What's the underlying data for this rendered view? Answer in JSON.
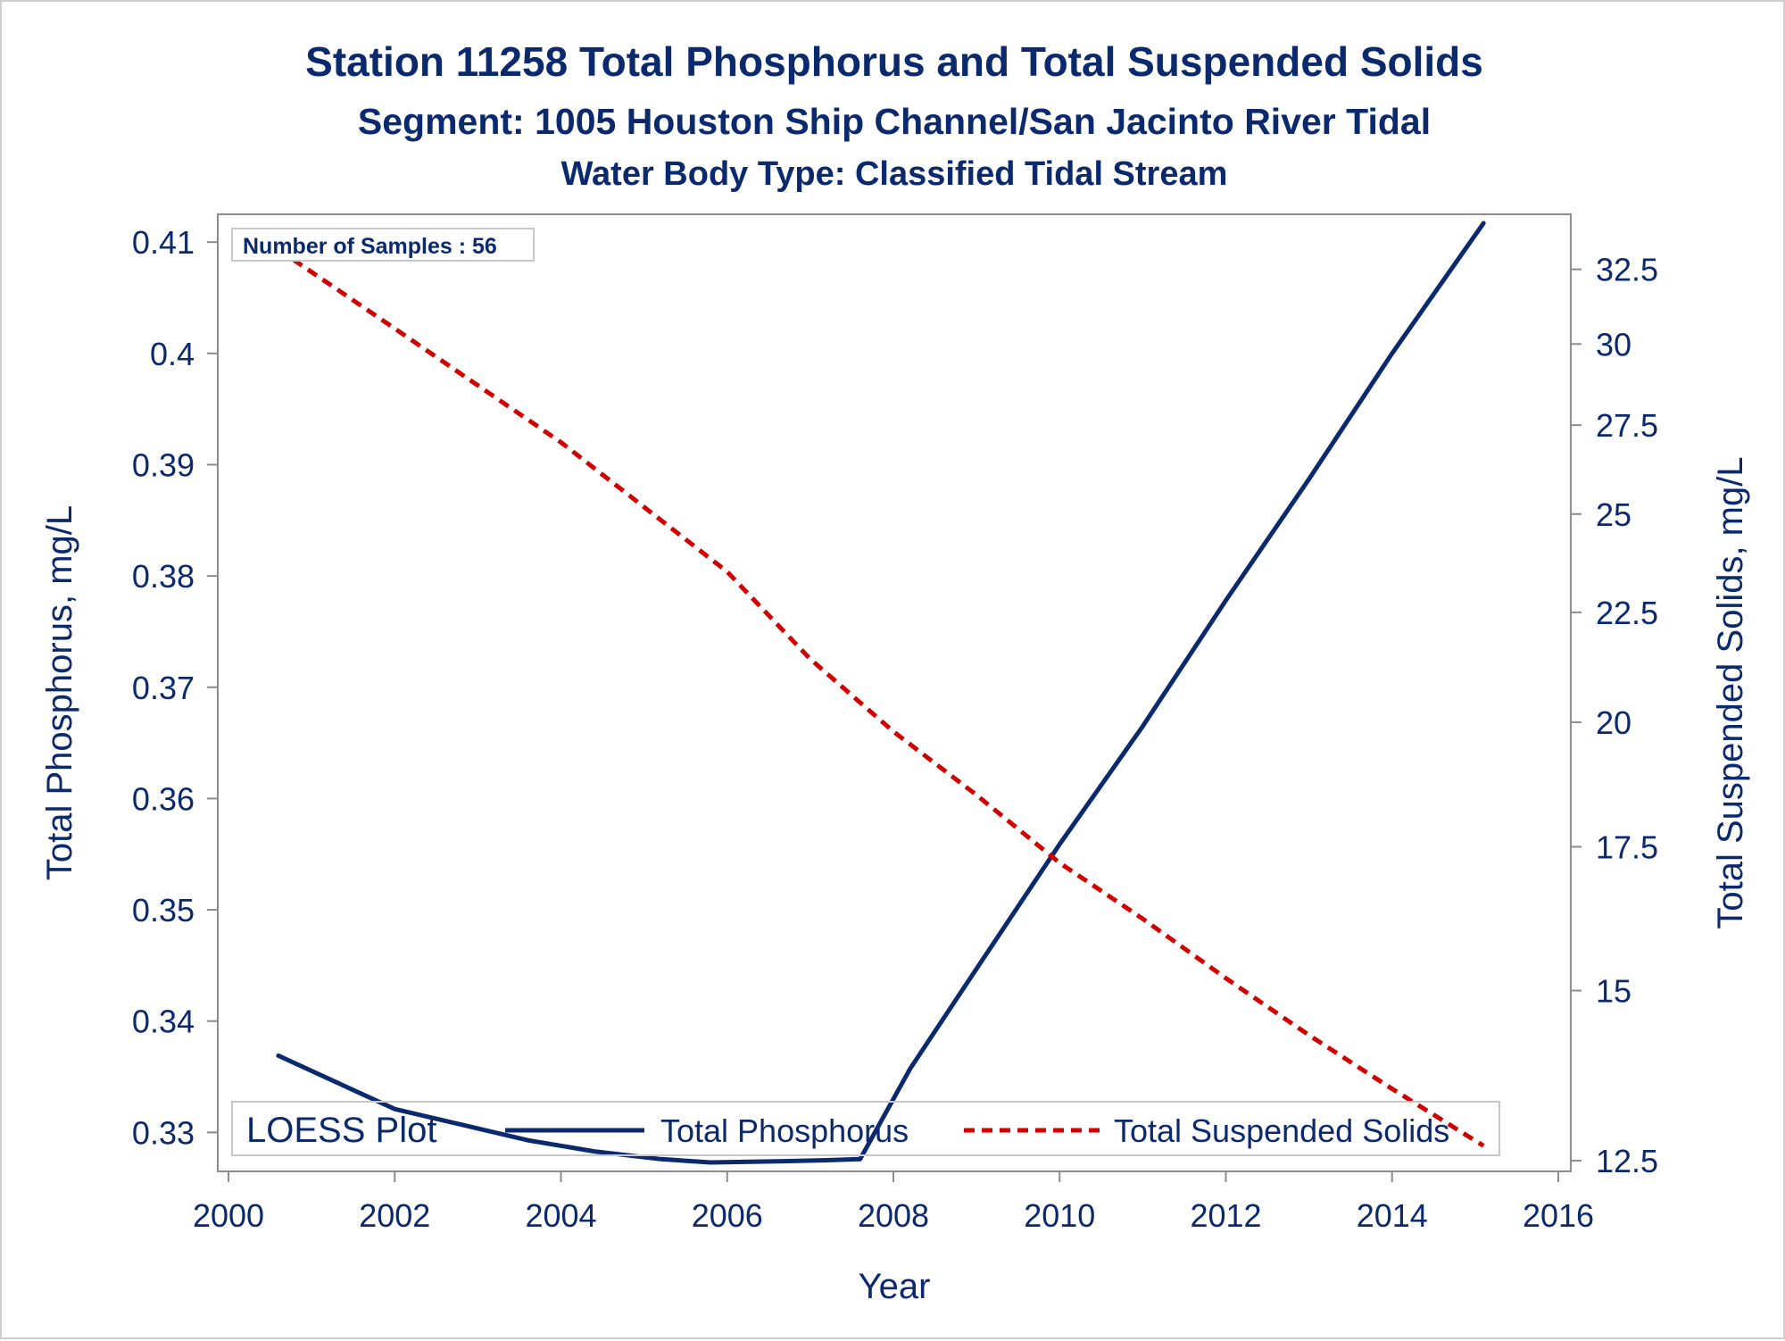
{
  "titles": {
    "line1": "Station 11258  Total Phosphorus and Total Suspended Solids",
    "line2": "Segment: 1005  Houston Ship Channel/San Jacinto River Tidal",
    "line3": "Water Body Type: Classified Tidal Stream"
  },
  "inset": {
    "text": "Number of Samples : 56"
  },
  "legend": {
    "title": "LOESS Plot",
    "items": [
      "Total Phosphorus",
      "Total Suspended Solids"
    ]
  },
  "colors": {
    "phosphorus": "#0b2a6e",
    "tss": "#d10000",
    "text": "#0b2a6e"
  },
  "chart_data": {
    "type": "line",
    "xlabel": "Year",
    "ylabel": "Total Phosphorus, mg/L",
    "y2label": "Total Suspended Solids, mg/L",
    "xlim": [
      2000,
      2016
    ],
    "ylim": [
      0.3265,
      0.4125
    ],
    "y2lim": [
      12.5,
      33.5
    ],
    "y2scale": "log",
    "xticks": [
      2000,
      2002,
      2004,
      2006,
      2008,
      2010,
      2012,
      2014,
      2016
    ],
    "yticks": [
      0.33,
      0.34,
      0.35,
      0.36,
      0.37,
      0.38,
      0.39,
      0.4,
      0.41
    ],
    "ytick_labels": [
      "0.33",
      "0.34",
      "0.35",
      "0.36",
      "0.37",
      "0.38",
      "0.39",
      "0.4",
      "0.41"
    ],
    "y2ticks": [
      12.5,
      15,
      17.5,
      20,
      22.5,
      25,
      27.5,
      30,
      32.5
    ],
    "y2tick_labels": [
      "12.5",
      "15",
      "17.5",
      "20",
      "22.5",
      "25",
      "27.5",
      "30",
      "32.5"
    ],
    "grid": false,
    "legend_position": "bottom-inside",
    "series": [
      {
        "name": "Total Phosphorus",
        "axis": "left",
        "style": "solid",
        "points": [
          [
            2000.6,
            0.3369
          ],
          [
            2001.3,
            0.3345
          ],
          [
            2002.0,
            0.3321
          ],
          [
            2002.8,
            0.3307
          ],
          [
            2003.6,
            0.3293
          ],
          [
            2004.4,
            0.3283
          ],
          [
            2005.2,
            0.3276
          ],
          [
            2005.8,
            0.3273
          ],
          [
            2006.6,
            0.3274
          ],
          [
            2007.2,
            0.3275
          ],
          [
            2007.6,
            0.3276
          ],
          [
            2008.2,
            0.3357
          ],
          [
            2009.0,
            0.3447
          ],
          [
            2010.0,
            0.3559
          ],
          [
            2011.0,
            0.3665
          ],
          [
            2012.0,
            0.3778
          ],
          [
            2013.0,
            0.3887
          ],
          [
            2014.0,
            0.4
          ],
          [
            2015.1,
            0.4117
          ]
        ]
      },
      {
        "name": "Total Suspended Solids",
        "axis": "right",
        "style": "dashed",
        "points": [
          [
            2000.6,
            33.2
          ],
          [
            2002.0,
            30.5
          ],
          [
            2004.0,
            27.0
          ],
          [
            2006.0,
            23.5
          ],
          [
            2007.0,
            21.4
          ],
          [
            2008.0,
            19.8
          ],
          [
            2009.0,
            18.5
          ],
          [
            2010.0,
            17.2
          ],
          [
            2011.0,
            16.2
          ],
          [
            2012.0,
            15.2
          ],
          [
            2013.0,
            14.3
          ],
          [
            2014.0,
            13.5
          ],
          [
            2015.1,
            12.7
          ]
        ]
      }
    ]
  }
}
